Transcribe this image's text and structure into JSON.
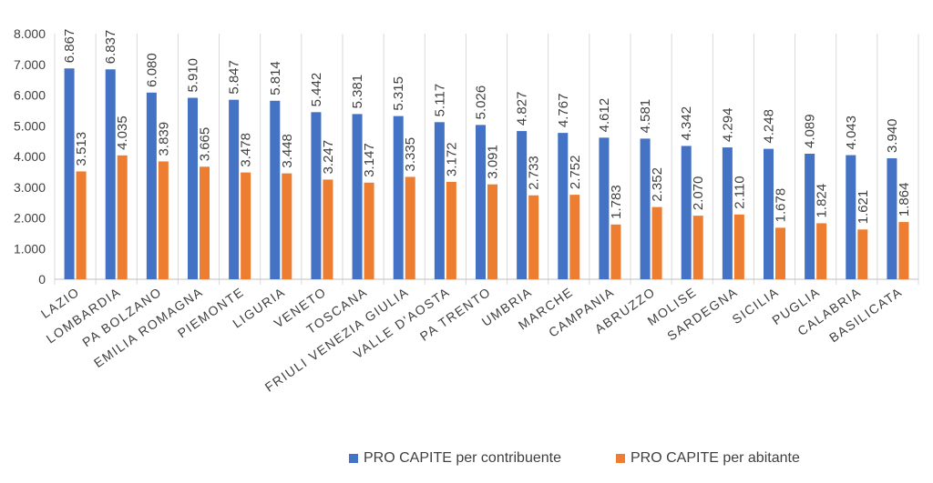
{
  "chart_data": {
    "type": "bar",
    "title": "",
    "xlabel": "",
    "ylabel": "",
    "ylim": [
      0,
      8000
    ],
    "y_ticks": [
      "0",
      "1.000",
      "2.000",
      "3.000",
      "4.000",
      "5.000",
      "6.000",
      "7.000",
      "8.000"
    ],
    "grid": "vertical category separators",
    "legend_position": "bottom",
    "categories": [
      "LAZIO",
      "LOMBARDIA",
      "PA BOLZANO",
      "EMILIA ROMAGNA",
      "PIEMONTE",
      "LIGURIA",
      "VENETO",
      "TOSCANA",
      "FRIULI VENEZIA GIULIA",
      "VALLE D'AOSTA",
      "PA TRENTO",
      "UMBRIA",
      "MARCHE",
      "CAMPANIA",
      "ABRUZZO",
      "MOLISE",
      "SARDEGNA",
      "SICILIA",
      "PUGLIA",
      "CALABRIA",
      "BASILICATA"
    ],
    "series": [
      {
        "name": "PRO CAPITE per contribuente",
        "color": "#4472C4",
        "values": [
          6867,
          6837,
          6080,
          5910,
          5847,
          5814,
          5442,
          5381,
          5315,
          5117,
          5026,
          4827,
          4767,
          4612,
          4581,
          4342,
          4294,
          4248,
          4089,
          4043,
          3940
        ],
        "labels": [
          "6.867",
          "6.837",
          "6.080",
          "5.910",
          "5.847",
          "5.814",
          "5.442",
          "5.381",
          "5.315",
          "5.117",
          "5.026",
          "4.827",
          "4.767",
          "4.612",
          "4.581",
          "4.342",
          "4.294",
          "4.248",
          "4.089",
          "4.043",
          "3.940"
        ]
      },
      {
        "name": "PRO CAPITE per abitante",
        "color": "#ED7D31",
        "values": [
          3513,
          4035,
          3839,
          3665,
          3478,
          3448,
          3247,
          3147,
          3335,
          3172,
          3091,
          2733,
          2752,
          1783,
          2352,
          2070,
          2110,
          1678,
          1824,
          1621,
          1864
        ],
        "labels": [
          "3.513",
          "4.035",
          "3.839",
          "3.665",
          "3.478",
          "3.448",
          "3.247",
          "3.147",
          "3.335",
          "3.172",
          "3.091",
          "2.733",
          "2.752",
          "1.783",
          "2.352",
          "2.070",
          "2.110",
          "1.678",
          "1.824",
          "1.621",
          "1.864"
        ]
      }
    ]
  }
}
